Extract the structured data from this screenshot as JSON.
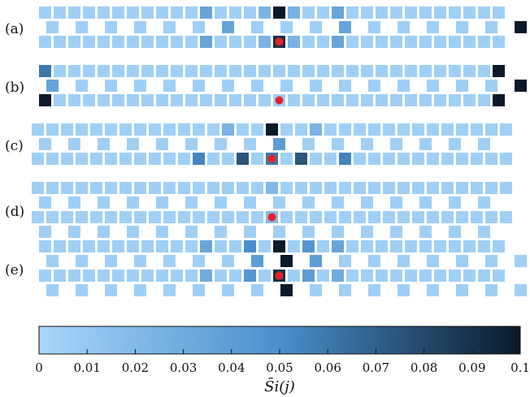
{
  "chart_data": {
    "type": "heatmap",
    "panels": [
      {
        "label": "(a)",
        "row_cells": [
          32,
          17,
          32
        ],
        "source_cell": {
          "row": 2,
          "index": 16
        },
        "hot_cells": [
          {
            "row": 0,
            "index": 16,
            "value": 0.1
          },
          {
            "row": 1,
            "index": 16,
            "value": 0.1
          },
          {
            "row": 2,
            "index": 16,
            "value": 0.09
          },
          {
            "row": 0,
            "index": 11,
            "value": 0.035
          },
          {
            "row": 1,
            "index": 6,
            "value": 0.035
          },
          {
            "row": 2,
            "index": 11,
            "value": 0.035
          },
          {
            "row": 0,
            "index": 20,
            "value": 0.035
          },
          {
            "row": 1,
            "index": 10,
            "value": 0.035
          },
          {
            "row": 2,
            "index": 20,
            "value": 0.035
          },
          {
            "row": 0,
            "index": 15,
            "value": 0.025
          },
          {
            "row": 0,
            "index": 17,
            "value": 0.025
          },
          {
            "row": 2,
            "index": 15,
            "value": 0.025
          },
          {
            "row": 2,
            "index": 17,
            "value": 0.025
          }
        ]
      },
      {
        "label": "(b)",
        "row_cells": [
          32,
          17,
          32
        ],
        "source_cell": {
          "row": 2,
          "index": 16
        },
        "hot_cells": [
          {
            "row": 0,
            "index": 0,
            "value": 0.06
          },
          {
            "row": 1,
            "index": 0,
            "value": 0.035
          },
          {
            "row": 2,
            "index": 0,
            "value": 0.1
          },
          {
            "row": 0,
            "index": 31,
            "value": 0.1
          },
          {
            "row": 1,
            "index": 16,
            "value": 0.1
          },
          {
            "row": 2,
            "index": 31,
            "value": 0.1
          }
        ]
      },
      {
        "label": "(c)",
        "row_cells": [
          33,
          16,
          33
        ],
        "source_cell": {
          "row": 2,
          "index": 16
        },
        "hot_cells": [
          {
            "row": 0,
            "index": 16,
            "value": 0.1
          },
          {
            "row": 1,
            "index": 8,
            "value": 0.04
          },
          {
            "row": 2,
            "index": 11,
            "value": 0.055
          },
          {
            "row": 2,
            "index": 14,
            "value": 0.075
          },
          {
            "row": 2,
            "index": 16,
            "value": 0.06
          },
          {
            "row": 2,
            "index": 18,
            "value": 0.075
          },
          {
            "row": 2,
            "index": 21,
            "value": 0.055
          },
          {
            "row": 0,
            "index": 13,
            "value": 0.025
          },
          {
            "row": 0,
            "index": 19,
            "value": 0.025
          }
        ]
      },
      {
        "label": "(d)",
        "row_cells": [
          33,
          16,
          33,
          16
        ],
        "source_cell": {
          "row": 2,
          "index": 16
        },
        "hot_cells": [
          {
            "row": 0,
            "index": 16,
            "value": 0.02
          },
          {
            "row": 2,
            "index": 16,
            "value": 0.02
          }
        ]
      },
      {
        "label": "(e)",
        "row_cells": [
          32,
          17,
          32,
          17
        ],
        "source_cell": {
          "row": 2,
          "index": 16
        },
        "hot_cells": [
          {
            "row": 0,
            "index": 16,
            "value": 0.1
          },
          {
            "row": 1,
            "index": 8,
            "value": 0.1
          },
          {
            "row": 2,
            "index": 16,
            "value": 0.09
          },
          {
            "row": 3,
            "index": 8,
            "value": 0.1
          },
          {
            "row": 0,
            "index": 14,
            "value": 0.05
          },
          {
            "row": 0,
            "index": 18,
            "value": 0.045
          },
          {
            "row": 1,
            "index": 7,
            "value": 0.04
          },
          {
            "row": 1,
            "index": 9,
            "value": 0.04
          },
          {
            "row": 2,
            "index": 14,
            "value": 0.045
          },
          {
            "row": 2,
            "index": 18,
            "value": 0.04
          },
          {
            "row": 0,
            "index": 11,
            "value": 0.035
          },
          {
            "row": 0,
            "index": 20,
            "value": 0.035
          },
          {
            "row": 2,
            "index": 11,
            "value": 0.03
          },
          {
            "row": 2,
            "index": 20,
            "value": 0.03
          }
        ]
      }
    ],
    "colorbar": {
      "label": "S̄i(j)",
      "range": [
        0,
        0.1
      ],
      "ticks": [
        "0",
        "0.01",
        "0.02",
        "0.03",
        "0.04",
        "0.05",
        "0.06",
        "0.07",
        "0.08",
        "0.09",
        "0.1"
      ],
      "color_low": "#a9d6fb",
      "color_mid": "#4a8fcb",
      "color_high": "#0b1a2b"
    },
    "base_value": 0.005,
    "source_marker_color": "#e8222a"
  }
}
